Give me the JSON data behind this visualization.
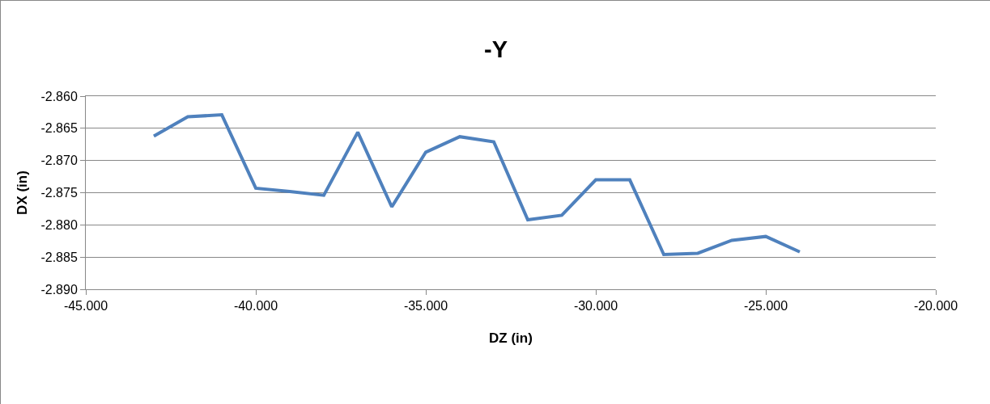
{
  "chart_data": {
    "type": "line",
    "title": "-Y",
    "xlabel": "DZ (in)",
    "ylabel": "DX (in)",
    "x": [
      -43,
      -42,
      -41,
      -40,
      -39,
      -38,
      -37,
      -36,
      -35,
      -34,
      -33,
      -32,
      -31,
      -30,
      -29,
      -28,
      -27,
      -26,
      -25,
      -24
    ],
    "series": [
      {
        "color": "#4f81bd",
        "values": [
          -2.8662,
          -2.8632,
          -2.8629,
          -2.8743,
          -2.8748,
          -2.8754,
          -2.8656,
          -2.8772,
          -2.8687,
          -2.8663,
          -2.8671,
          -2.8792,
          -2.8785,
          -2.873,
          -2.873,
          -2.8846,
          -2.8844,
          -2.8824,
          -2.8818,
          -2.8842
        ]
      }
    ],
    "xlim": [
      -45,
      -20
    ],
    "xticks": [
      {
        "value": -45,
        "label": "-45.000"
      },
      {
        "value": -40,
        "label": "-40.000"
      },
      {
        "value": -35,
        "label": "-35.000"
      },
      {
        "value": -30,
        "label": "-30.000"
      },
      {
        "value": -25,
        "label": "-25.000"
      },
      {
        "value": -20,
        "label": "-20.000"
      }
    ],
    "ylim": [
      -2.89,
      -2.86
    ],
    "yticks": [
      {
        "value": -2.89,
        "label": "-2.890"
      },
      {
        "value": -2.885,
        "label": "-2.885"
      },
      {
        "value": -2.88,
        "label": "-2.880"
      },
      {
        "value": -2.875,
        "label": "-2.875"
      },
      {
        "value": -2.87,
        "label": "-2.870"
      },
      {
        "value": -2.865,
        "label": "-2.865"
      },
      {
        "value": -2.86,
        "label": "-2.860"
      }
    ],
    "grid": "y",
    "marker": "none",
    "line_style": "solid"
  }
}
